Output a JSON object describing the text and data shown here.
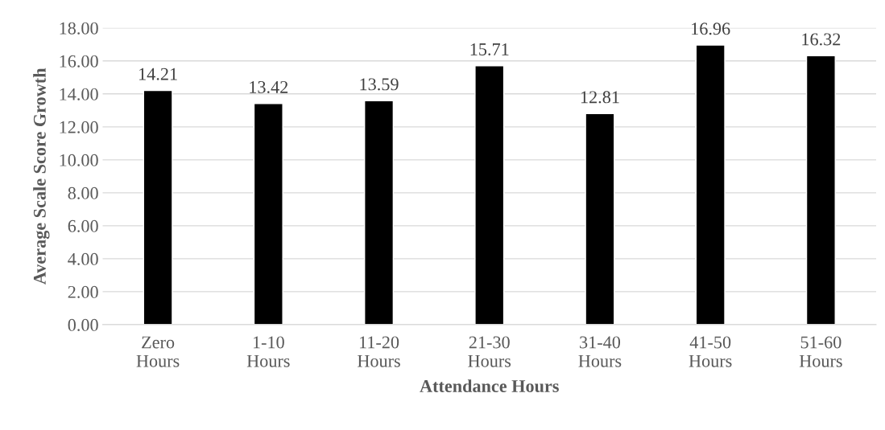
{
  "chart_data": {
    "type": "bar",
    "xlabel": "Attendance Hours",
    "ylabel": "Average Scale Score Growth",
    "categories": [
      "Zero\nHours",
      "1-10\nHours",
      "11-20\nHours",
      "21-30\nHours",
      "31-40\nHours",
      "41-50\nHours",
      "51-60\nHours"
    ],
    "values": [
      14.21,
      13.42,
      13.59,
      15.71,
      12.81,
      16.96,
      16.32
    ],
    "color": "#000000",
    "ylim": [
      0,
      18
    ],
    "yticks": [
      {
        "value": 0,
        "label": "0.00"
      },
      {
        "value": 2,
        "label": "2.00"
      },
      {
        "value": 4,
        "label": "4.00"
      },
      {
        "value": 6,
        "label": "6.00"
      },
      {
        "value": 8,
        "label": "8.00"
      },
      {
        "value": 10,
        "label": "10.00"
      },
      {
        "value": 12,
        "label": "12.00"
      },
      {
        "value": 14,
        "label": "14.00"
      },
      {
        "value": 16,
        "label": "16.00"
      },
      {
        "value": 18,
        "label": "18.00"
      }
    ],
    "grid": "y",
    "data_labels": true
  }
}
